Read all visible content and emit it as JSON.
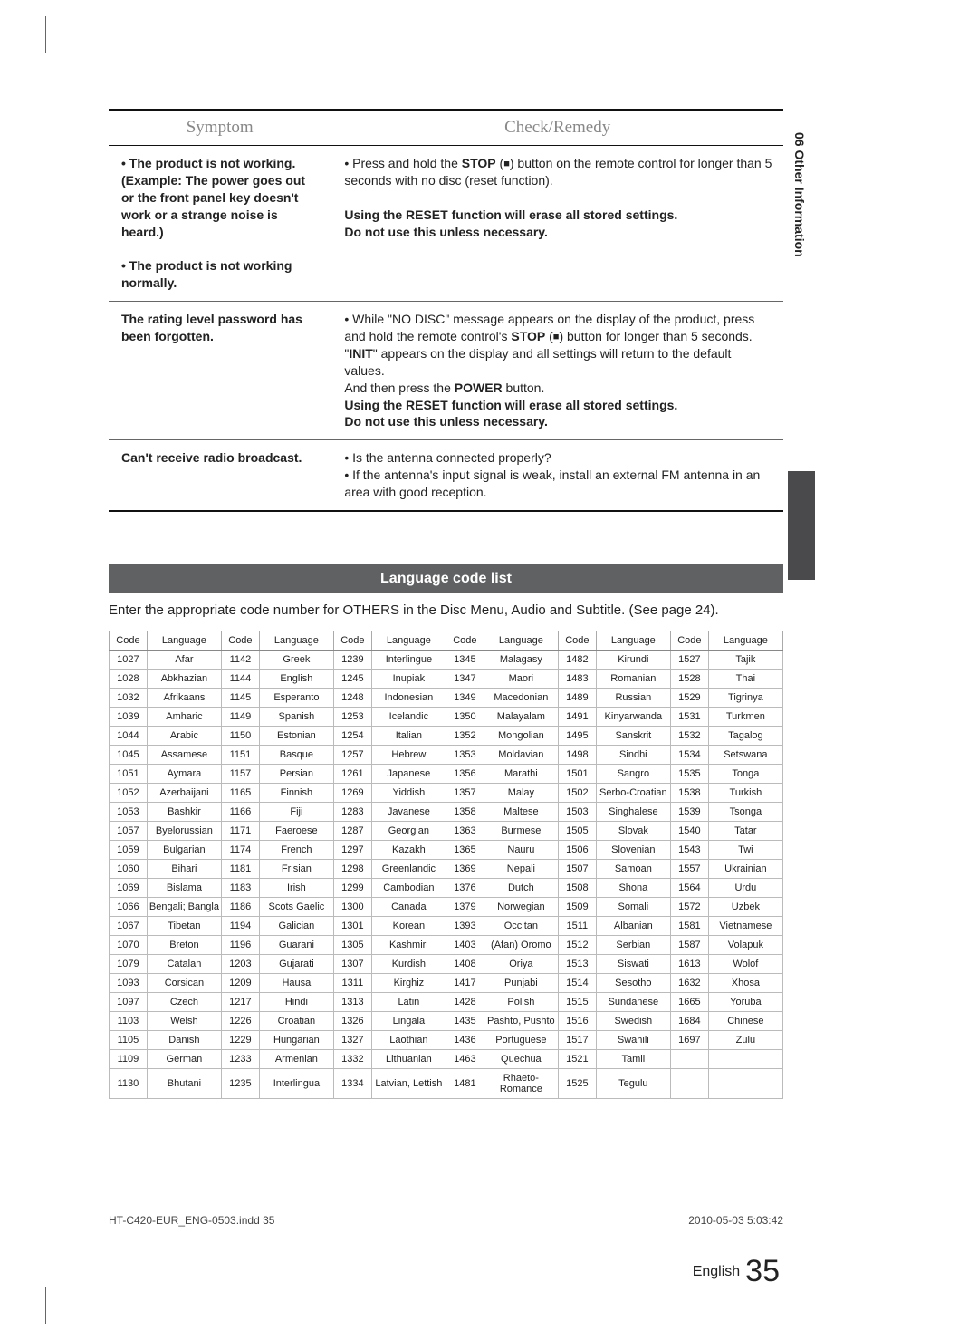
{
  "side_tab": "06  Other Information",
  "sym_table": {
    "headers": [
      "Symptom",
      "Check/Remedy"
    ],
    "rows": [
      {
        "symptom": "• The product is not working.\n(Example: The power goes out or the front panel key doesn't work or a strange noise is heard.)\n• The product is not working normally.",
        "remedy": "• Press and hold the STOP (■) button on the remote control for longer than 5 seconds with no disc (reset function).\n\nUsing the RESET function will erase all stored settings.\nDo not use this unless necessary."
      },
      {
        "symptom": "The rating level password has been forgotten.",
        "remedy": "• While \"NO DISC\" message appears on the display of the product, press and hold the remote control's STOP (■) button for longer than 5 seconds. \"INIT\" appears on the display and all settings will return to the default values.\nAnd then press the POWER button.\nUsing the RESET function will erase all stored settings.\nDo not use this unless necessary."
      },
      {
        "symptom": "Can't receive radio broadcast.",
        "remedy": "• Is the antenna connected properly?\n• If the antenna's input signal is weak, install an external FM antenna in an area with good reception."
      }
    ]
  },
  "lang_title": "Language code list",
  "lang_intro": "Enter the appropriate code number for OTHERS in the Disc Menu, Audio and Subtitle. (See page 24).",
  "lang_headers": [
    "Code",
    "Language",
    "Code",
    "Language",
    "Code",
    "Language",
    "Code",
    "Language",
    "Code",
    "Language",
    "Code",
    "Language"
  ],
  "lang_rows": [
    [
      "1027",
      "Afar",
      "1142",
      "Greek",
      "1239",
      "Interlingue",
      "1345",
      "Malagasy",
      "1482",
      "Kirundi",
      "1527",
      "Tajik"
    ],
    [
      "1028",
      "Abkhazian",
      "1144",
      "English",
      "1245",
      "Inupiak",
      "1347",
      "Maori",
      "1483",
      "Romanian",
      "1528",
      "Thai"
    ],
    [
      "1032",
      "Afrikaans",
      "1145",
      "Esperanto",
      "1248",
      "Indonesian",
      "1349",
      "Macedonian",
      "1489",
      "Russian",
      "1529",
      "Tigrinya"
    ],
    [
      "1039",
      "Amharic",
      "1149",
      "Spanish",
      "1253",
      "Icelandic",
      "1350",
      "Malayalam",
      "1491",
      "Kinyarwanda",
      "1531",
      "Turkmen"
    ],
    [
      "1044",
      "Arabic",
      "1150",
      "Estonian",
      "1254",
      "Italian",
      "1352",
      "Mongolian",
      "1495",
      "Sanskrit",
      "1532",
      "Tagalog"
    ],
    [
      "1045",
      "Assamese",
      "1151",
      "Basque",
      "1257",
      "Hebrew",
      "1353",
      "Moldavian",
      "1498",
      "Sindhi",
      "1534",
      "Setswana"
    ],
    [
      "1051",
      "Aymara",
      "1157",
      "Persian",
      "1261",
      "Japanese",
      "1356",
      "Marathi",
      "1501",
      "Sangro",
      "1535",
      "Tonga"
    ],
    [
      "1052",
      "Azerbaijani",
      "1165",
      "Finnish",
      "1269",
      "Yiddish",
      "1357",
      "Malay",
      "1502",
      "Serbo-Croatian",
      "1538",
      "Turkish"
    ],
    [
      "1053",
      "Bashkir",
      "1166",
      "Fiji",
      "1283",
      "Javanese",
      "1358",
      "Maltese",
      "1503",
      "Singhalese",
      "1539",
      "Tsonga"
    ],
    [
      "1057",
      "Byelorussian",
      "1171",
      "Faeroese",
      "1287",
      "Georgian",
      "1363",
      "Burmese",
      "1505",
      "Slovak",
      "1540",
      "Tatar"
    ],
    [
      "1059",
      "Bulgarian",
      "1174",
      "French",
      "1297",
      "Kazakh",
      "1365",
      "Nauru",
      "1506",
      "Slovenian",
      "1543",
      "Twi"
    ],
    [
      "1060",
      "Bihari",
      "1181",
      "Frisian",
      "1298",
      "Greenlandic",
      "1369",
      "Nepali",
      "1507",
      "Samoan",
      "1557",
      "Ukrainian"
    ],
    [
      "1069",
      "Bislama",
      "1183",
      "Irish",
      "1299",
      "Cambodian",
      "1376",
      "Dutch",
      "1508",
      "Shona",
      "1564",
      "Urdu"
    ],
    [
      "1066",
      "Bengali; Bangla",
      "1186",
      "Scots Gaelic",
      "1300",
      "Canada",
      "1379",
      "Norwegian",
      "1509",
      "Somali",
      "1572",
      "Uzbek"
    ],
    [
      "1067",
      "Tibetan",
      "1194",
      "Galician",
      "1301",
      "Korean",
      "1393",
      "Occitan",
      "1511",
      "Albanian",
      "1581",
      "Vietnamese"
    ],
    [
      "1070",
      "Breton",
      "1196",
      "Guarani",
      "1305",
      "Kashmiri",
      "1403",
      "(Afan) Oromo",
      "1512",
      "Serbian",
      "1587",
      "Volapuk"
    ],
    [
      "1079",
      "Catalan",
      "1203",
      "Gujarati",
      "1307",
      "Kurdish",
      "1408",
      "Oriya",
      "1513",
      "Siswati",
      "1613",
      "Wolof"
    ],
    [
      "1093",
      "Corsican",
      "1209",
      "Hausa",
      "1311",
      "Kirghiz",
      "1417",
      "Punjabi",
      "1514",
      "Sesotho",
      "1632",
      "Xhosa"
    ],
    [
      "1097",
      "Czech",
      "1217",
      "Hindi",
      "1313",
      "Latin",
      "1428",
      "Polish",
      "1515",
      "Sundanese",
      "1665",
      "Yoruba"
    ],
    [
      "1103",
      "Welsh",
      "1226",
      "Croatian",
      "1326",
      "Lingala",
      "1435",
      "Pashto, Pushto",
      "1516",
      "Swedish",
      "1684",
      "Chinese"
    ],
    [
      "1105",
      "Danish",
      "1229",
      "Hungarian",
      "1327",
      "Laothian",
      "1436",
      "Portuguese",
      "1517",
      "Swahili",
      "1697",
      "Zulu"
    ],
    [
      "1109",
      "German",
      "1233",
      "Armenian",
      "1332",
      "Lithuanian",
      "1463",
      "Quechua",
      "1521",
      "Tamil",
      "",
      ""
    ],
    [
      "1130",
      "Bhutani",
      "1235",
      "Interlingua",
      "1334",
      "Latvian, Lettish",
      "1481",
      "Rhaeto-Romance",
      "1525",
      "Tegulu",
      "",
      ""
    ]
  ],
  "footer": {
    "lang": "English",
    "page": "35"
  },
  "meta": {
    "file": "HT-C420-EUR_ENG-0503.indd   35",
    "ts": "2010-05-03    5:03:42"
  },
  "colors": {
    "bar_bg": "#606163",
    "bar_fg": "#ffffff",
    "side_block": "#4a4a4c",
    "border_strong": "#111111",
    "border_light": "#bbbbbb",
    "text_muted": "#888888"
  }
}
